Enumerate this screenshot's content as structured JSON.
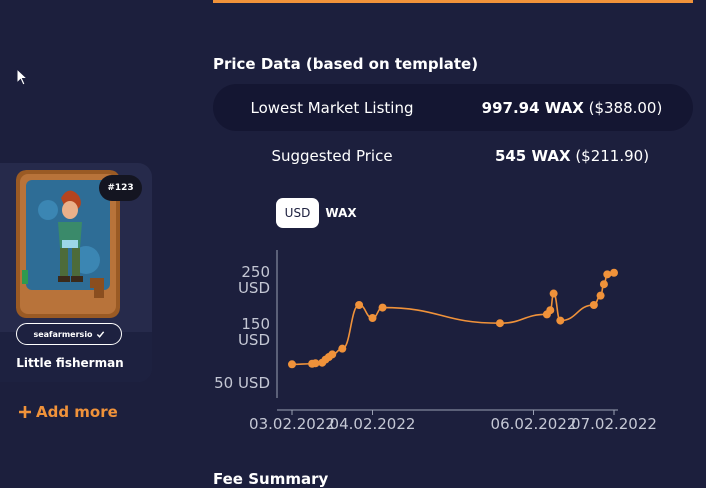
{
  "card": {
    "badge": "#123",
    "collection": "seafarmersio",
    "name": "Little fisherman"
  },
  "add_more_label": "Add more",
  "price_section": {
    "title": "Price Data (based on template)",
    "rows": [
      {
        "label": "Lowest Market Listing",
        "value_bold": "997.94 WAX",
        "value_rest": "($388.00)"
      },
      {
        "label": "Suggested Price",
        "value_bold": "545 WAX",
        "value_rest": "($211.90)"
      }
    ]
  },
  "currency_toggle": {
    "options": [
      "USD",
      "WAX"
    ],
    "selected": "USD"
  },
  "colors": {
    "accent": "#f0923a",
    "background": "#1c1f3d"
  },
  "chart_data": {
    "type": "line",
    "xlabel": "",
    "ylabel": "",
    "x_ticks": [
      "03.02.2022",
      "04.02.2022",
      "06.02.2022",
      "07.02.2022"
    ],
    "y_ticks": [
      "250\nUSD",
      "150\nUSD",
      "50 USD"
    ],
    "series": [
      {
        "color": "#f0923a",
        "points": [
          [
            "2022-02-03 00:00",
            86
          ],
          [
            "2022-02-03 06:00",
            87
          ],
          [
            "2022-02-03 07:00",
            88
          ],
          [
            "2022-02-03 09:00",
            89
          ],
          [
            "2022-02-03 10:00",
            95
          ],
          [
            "2022-02-03 11:00",
            100
          ],
          [
            "2022-02-03 12:00",
            105
          ],
          [
            "2022-02-03 15:00",
            116
          ],
          [
            "2022-02-03 20:00",
            200
          ],
          [
            "2022-02-04 00:00",
            175
          ],
          [
            "2022-02-04 03:00",
            195
          ],
          [
            "2022-02-05 14:00",
            165
          ],
          [
            "2022-02-06 04:00",
            182
          ],
          [
            "2022-02-06 05:00",
            190
          ],
          [
            "2022-02-06 06:00",
            222
          ],
          [
            "2022-02-06 08:00",
            170
          ],
          [
            "2022-02-06 18:00",
            200
          ],
          [
            "2022-02-06 20:00",
            218
          ],
          [
            "2022-02-06 21:00",
            240
          ],
          [
            "2022-02-06 22:00",
            259
          ],
          [
            "2022-02-07 00:00",
            262
          ]
        ]
      }
    ]
  }
}
